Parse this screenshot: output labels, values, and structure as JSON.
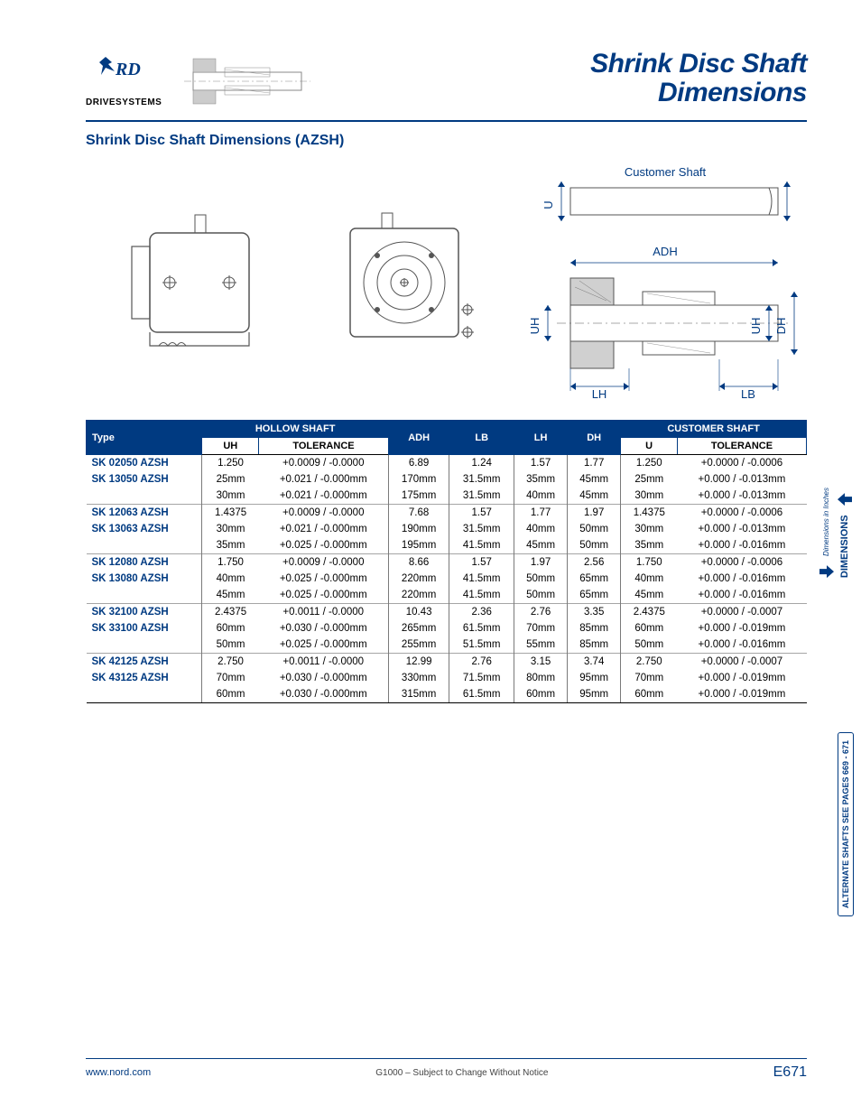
{
  "header": {
    "logo_main": "NORD",
    "logo_sub": "DRIVESYSTEMS",
    "title_line1": "Shrink Disc Shaft",
    "title_line2": "Dimensions"
  },
  "section": {
    "title": "Shrink Disc Shaft Dimensions (AZSH)"
  },
  "diagram": {
    "customer_shaft": "Customer Shaft",
    "ADH": "ADH",
    "LH": "LH",
    "LB": "LB",
    "UH": "UH",
    "DH": "DH",
    "U": "U"
  },
  "table": {
    "headers": {
      "type": "Type",
      "hollow": "HOLLOW SHAFT",
      "adh": "ADH",
      "lb": "LB",
      "lh": "LH",
      "dh": "DH",
      "cust": "CUSTOMER SHAFT",
      "uh": "UH",
      "tol": "TOLERANCE",
      "u": "U"
    },
    "groups": [
      {
        "types": [
          "SK 02050 AZSH",
          "SK 13050 AZSH"
        ],
        "rows": [
          {
            "uh": "1.250",
            "tol": "+0.0009 / -0.0000",
            "adh": "6.89",
            "lb": "1.24",
            "lh": "1.57",
            "dh": "1.77",
            "u": "1.250",
            "utol": "+0.0000 / -0.0006"
          },
          {
            "uh": "25mm",
            "tol": "+0.021 / -0.000mm",
            "adh": "170mm",
            "lb": "31.5mm",
            "lh": "35mm",
            "dh": "45mm",
            "u": "25mm",
            "utol": "+0.000 / -0.013mm"
          },
          {
            "uh": "30mm",
            "tol": "+0.021 / -0.000mm",
            "adh": "175mm",
            "lb": "31.5mm",
            "lh": "40mm",
            "dh": "45mm",
            "u": "30mm",
            "utol": "+0.000 / -0.013mm"
          }
        ]
      },
      {
        "types": [
          "SK 12063 AZSH",
          "SK 13063 AZSH"
        ],
        "rows": [
          {
            "uh": "1.4375",
            "tol": "+0.0009 / -0.0000",
            "adh": "7.68",
            "lb": "1.57",
            "lh": "1.77",
            "dh": "1.97",
            "u": "1.4375",
            "utol": "+0.0000 / -0.0006"
          },
          {
            "uh": "30mm",
            "tol": "+0.021 / -0.000mm",
            "adh": "190mm",
            "lb": "31.5mm",
            "lh": "40mm",
            "dh": "50mm",
            "u": "30mm",
            "utol": "+0.000 / -0.013mm"
          },
          {
            "uh": "35mm",
            "tol": "+0.025 / -0.000mm",
            "adh": "195mm",
            "lb": "41.5mm",
            "lh": "45mm",
            "dh": "50mm",
            "u": "35mm",
            "utol": "+0.000 / -0.016mm"
          }
        ]
      },
      {
        "types": [
          "SK 12080 AZSH",
          "SK 13080 AZSH"
        ],
        "rows": [
          {
            "uh": "1.750",
            "tol": "+0.0009 / -0.0000",
            "adh": "8.66",
            "lb": "1.57",
            "lh": "1.97",
            "dh": "2.56",
            "u": "1.750",
            "utol": "+0.0000 / -0.0006"
          },
          {
            "uh": "40mm",
            "tol": "+0.025 / -0.000mm",
            "adh": "220mm",
            "lb": "41.5mm",
            "lh": "50mm",
            "dh": "65mm",
            "u": "40mm",
            "utol": "+0.000 / -0.016mm"
          },
          {
            "uh": "45mm",
            "tol": "+0.025 / -0.000mm",
            "adh": "220mm",
            "lb": "41.5mm",
            "lh": "50mm",
            "dh": "65mm",
            "u": "45mm",
            "utol": "+0.000 / -0.016mm"
          }
        ]
      },
      {
        "types": [
          "SK 32100 AZSH",
          "SK 33100 AZSH"
        ],
        "rows": [
          {
            "uh": "2.4375",
            "tol": "+0.0011 / -0.0000",
            "adh": "10.43",
            "lb": "2.36",
            "lh": "2.76",
            "dh": "3.35",
            "u": "2.4375",
            "utol": "+0.0000 / -0.0007"
          },
          {
            "uh": "60mm",
            "tol": "+0.030 / -0.000mm",
            "adh": "265mm",
            "lb": "61.5mm",
            "lh": "70mm",
            "dh": "85mm",
            "u": "60mm",
            "utol": "+0.000 / -0.019mm"
          },
          {
            "uh": "50mm",
            "tol": "+0.025 / -0.000mm",
            "adh": "255mm",
            "lb": "51.5mm",
            "lh": "55mm",
            "dh": "85mm",
            "u": "50mm",
            "utol": "+0.000 / -0.016mm"
          }
        ]
      },
      {
        "types": [
          "SK 42125 AZSH",
          "SK 43125 AZSH"
        ],
        "rows": [
          {
            "uh": "2.750",
            "tol": "+0.0011 / -0.0000",
            "adh": "12.99",
            "lb": "2.76",
            "lh": "3.15",
            "dh": "3.74",
            "u": "2.750",
            "utol": "+0.0000 / -0.0007"
          },
          {
            "uh": "70mm",
            "tol": "+0.030 / -0.000mm",
            "adh": "330mm",
            "lb": "71.5mm",
            "lh": "80mm",
            "dh": "95mm",
            "u": "70mm",
            "utol": "+0.000 / -0.019mm"
          },
          {
            "uh": "60mm",
            "tol": "+0.030 / -0.000mm",
            "adh": "315mm",
            "lb": "61.5mm",
            "lh": "60mm",
            "dh": "95mm",
            "u": "60mm",
            "utol": "+0.000 / -0.019mm"
          }
        ]
      }
    ]
  },
  "side": {
    "dim_small": "Dimensions in Inches",
    "dim_big": "DIMENSIONS",
    "alt": "ALTERNATE SHAFTS SEE PAGES  669 - 671"
  },
  "footer": {
    "url": "www.nord.com",
    "mid": "G1000 – Subject to Change Without Notice",
    "page": "E671"
  },
  "colors": {
    "brand": "#003a81"
  }
}
